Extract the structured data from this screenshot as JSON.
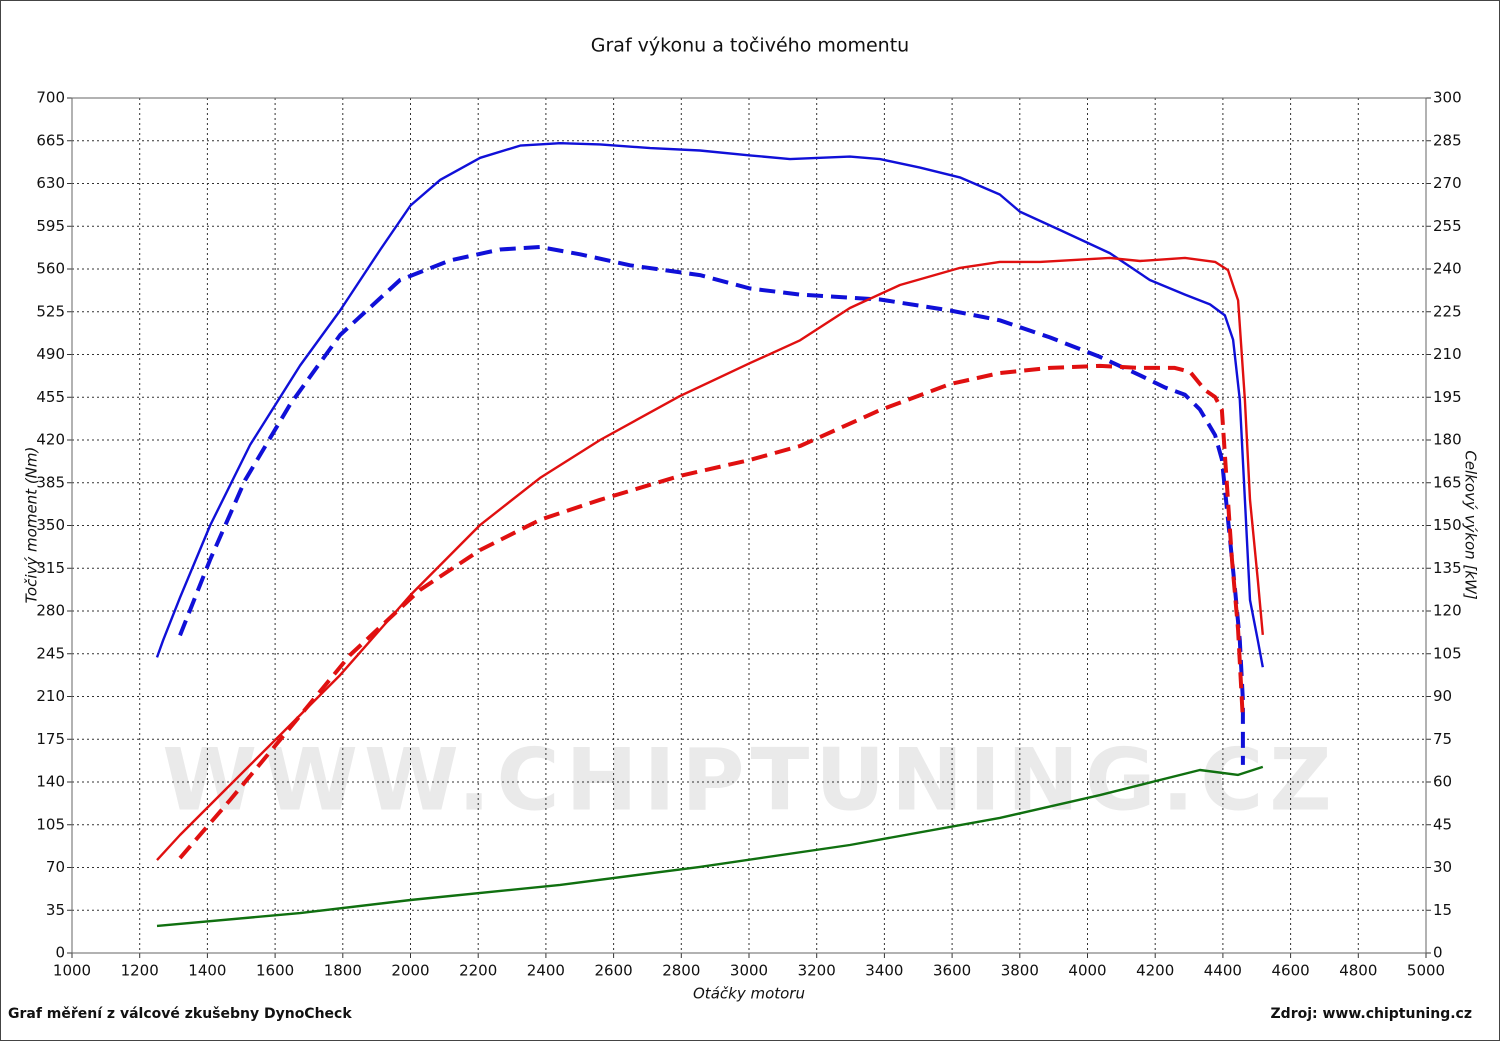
{
  "chart_data": {
    "type": "line",
    "title": "Graf výkonu a točivého momentu",
    "xlabel": "Otáčky motoru",
    "ylabel": "Točivý moment (Nm)",
    "y2label": "Celkový výkon [kW]",
    "footer_left": "Graf měření z válcové zkušebny DynoCheck",
    "footer_right": "Zdroj: www.chiptuning.cz",
    "watermark": "WWW.CHIPTUNING.CZ",
    "grid": true,
    "xlim": [
      1000,
      5000
    ],
    "xticks": [
      1000,
      1200,
      1400,
      1600,
      1800,
      2000,
      2200,
      2400,
      2600,
      2800,
      3000,
      3200,
      3400,
      3600,
      3800,
      4000,
      4200,
      4400,
      4600,
      4800,
      5000
    ],
    "ylim": [
      0,
      700
    ],
    "yticks": [
      0,
      35,
      70,
      105,
      140,
      175,
      210,
      245,
      280,
      315,
      350,
      385,
      420,
      455,
      490,
      525,
      560,
      595,
      630,
      665,
      700
    ],
    "y2lim": [
      0,
      300
    ],
    "y2ticks": [
      0,
      15,
      30,
      45,
      60,
      75,
      90,
      105,
      120,
      135,
      150,
      165,
      180,
      195,
      210,
      225,
      240,
      255,
      270,
      285,
      300
    ],
    "series": [
      {
        "color": "#1010d8",
        "dashed": false,
        "axis": "y",
        "x": [
          1251,
          1269,
          1319,
          1408,
          1526,
          1674,
          1792,
          1911,
          2000,
          2088,
          2206,
          2324,
          2442,
          2560,
          2708,
          2855,
          3003,
          3121,
          3298,
          3387,
          3505,
          3623,
          3741,
          3800,
          3918,
          4066,
          4184,
          4288,
          4362,
          4406,
          4430,
          4450,
          4465,
          4480,
          4503,
          4518
        ],
        "values": [
          242,
          256,
          291,
          350,
          416,
          481,
          526,
          576,
          612,
          633,
          651,
          661,
          663,
          662,
          659,
          657,
          653,
          650,
          652,
          650,
          643,
          635,
          621,
          607,
          592,
          573,
          551,
          539,
          531,
          522,
          502,
          453,
          371,
          289,
          256,
          234
        ]
      },
      {
        "color": "#1010d8",
        "dashed": true,
        "axis": "y",
        "x": [
          1319,
          1408,
          1511,
          1644,
          1792,
          1969,
          2117,
          2264,
          2383,
          2501,
          2649,
          2855,
          3003,
          3151,
          3387,
          3594,
          3741,
          3889,
          4037,
          4155,
          4229,
          4288,
          4332,
          4377,
          4397,
          4415,
          4436,
          4450,
          4459,
          4459
        ],
        "values": [
          260,
          322,
          387,
          449,
          506,
          551,
          567,
          576,
          578,
          572,
          563,
          555,
          544,
          539,
          535,
          526,
          518,
          504,
          488,
          473,
          463,
          457,
          445,
          424,
          404,
          355,
          297,
          256,
          207,
          154
        ]
      },
      {
        "color": "#e01010",
        "dashed": false,
        "axis": "y2",
        "x": [
          1251,
          1319,
          1437,
          1615,
          1792,
          2000,
          2206,
          2383,
          2560,
          2796,
          3003,
          3151,
          3298,
          3446,
          3623,
          3741,
          3860,
          4066,
          4155,
          4288,
          4377,
          4415,
          4445,
          4465,
          4480,
          4503,
          4518
        ],
        "values": [
          32.6,
          41.4,
          55.4,
          76.5,
          97.5,
          125.6,
          150.2,
          166.7,
          180,
          195.4,
          207,
          215,
          226.3,
          234.4,
          240.4,
          242.5,
          242.5,
          243.9,
          242.8,
          243.9,
          242.5,
          239.6,
          229,
          194,
          159,
          131,
          111.6
        ]
      },
      {
        "color": "#e01010",
        "dashed": true,
        "axis": "y2",
        "x": [
          1319,
          1467,
          1644,
          1822,
          2028,
          2206,
          2383,
          2560,
          2796,
          3003,
          3151,
          3387,
          3594,
          3741,
          3889,
          4037,
          4155,
          4258,
          4303,
          4347,
          4377,
          4397,
          4409,
          4427,
          4445,
          4459
        ],
        "values": [
          33.3,
          53.7,
          79,
          104.6,
          127.4,
          141.4,
          152,
          159,
          167.4,
          173,
          177.9,
          190.5,
          199.6,
          203.5,
          205.3,
          206,
          205.3,
          205.3,
          203.9,
          197.5,
          195.1,
          190.5,
          169.5,
          137.9,
          113.3,
          81.8
        ]
      },
      {
        "color": "#107010",
        "dashed": false,
        "axis": "y2",
        "x": [
          1251,
          1674,
          2000,
          2442,
          2855,
          3298,
          3741,
          4037,
          4332,
          4445,
          4518
        ],
        "values": [
          9.5,
          14,
          18.6,
          23.9,
          30.2,
          37.9,
          47.4,
          55.4,
          64.2,
          62.5,
          65.3
        ]
      }
    ]
  }
}
